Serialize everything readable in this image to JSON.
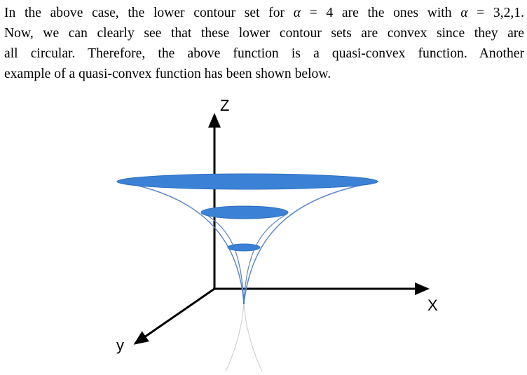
{
  "paragraph": {
    "line1": {
      "a": "In the above case, the lower contour set for ",
      "alpha1": "α",
      "b": " = 4 are the ones with ",
      "alpha2": "α",
      "c": " = 3,2,1."
    },
    "line2": "Now, we can clearly see that these lower contour sets are convex since they are",
    "line3": "all circular. Therefore, the above function is a quasi-convex function. Another",
    "line4": "example of a quasi-convex function has been shown below."
  },
  "figure": {
    "z_label": "Z",
    "x_label": "X",
    "y_label": "y",
    "colors": {
      "axis": "#000000",
      "disc_fill": "#3b82d6",
      "disc_stroke": "#2f6fbf",
      "curve": "#5f86c4",
      "faint_curve": "#c9c9c9"
    }
  }
}
